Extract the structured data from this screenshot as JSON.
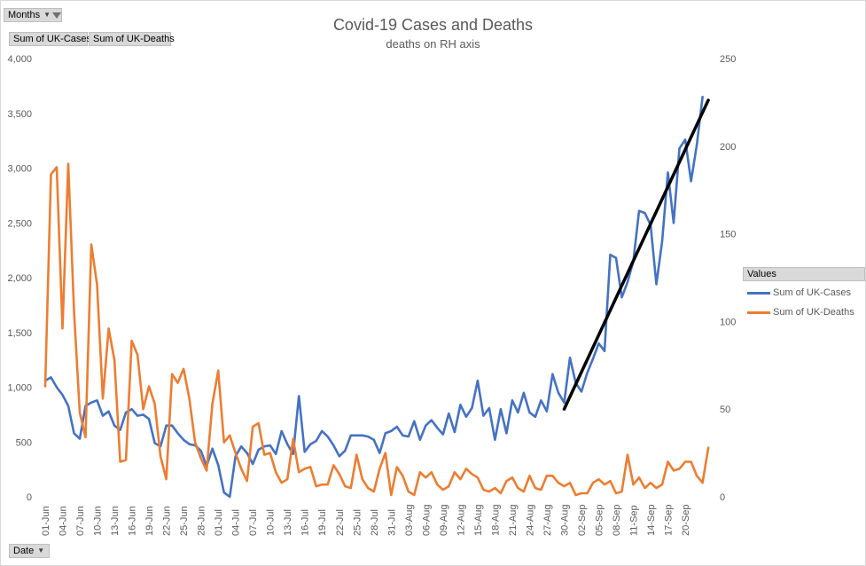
{
  "pivot": {
    "months_label": "Months",
    "cases_field": "Sum of UK-Cases",
    "deaths_field": "Sum of UK-Deaths",
    "date_label": "Date",
    "legend_header": "Values"
  },
  "chart_data": {
    "type": "line",
    "title": "Covid-19 Cases and Deaths",
    "subtitle": "deaths on RH axis",
    "ylim_left": [
      0,
      4000
    ],
    "yticks_left": [
      "0",
      "500",
      "1,000",
      "1,500",
      "2,000",
      "2,500",
      "3,000",
      "3,500",
      "4,000"
    ],
    "ylim_right": [
      0,
      250
    ],
    "yticks_right": [
      "0",
      "50",
      "100",
      "150",
      "200",
      "250"
    ],
    "legend_position": "right",
    "grid": false,
    "x_tick_labels": [
      "01-Jun",
      "04-Jun",
      "07-Jun",
      "10-Jun",
      "13-Jun",
      "16-Jun",
      "19-Jun",
      "22-Jun",
      "25-Jun",
      "28-Jun",
      "01-Jul",
      "04-Jul",
      "07-Jul",
      "10-Jul",
      "13-Jul",
      "16-Jul",
      "19-Jul",
      "22-Jul",
      "25-Jul",
      "28-Jul",
      "31-Jul",
      "03-Aug",
      "06-Aug",
      "09-Aug",
      "12-Aug",
      "15-Aug",
      "18-Aug",
      "21-Aug",
      "24-Aug",
      "27-Aug",
      "30-Aug",
      "02-Sep",
      "05-Sep",
      "08-Sep",
      "11-Sep",
      "14-Sep",
      "17-Sep",
      "20-Sep"
    ],
    "series": [
      {
        "name": "Sum of UK-Cases",
        "axis": "left",
        "color": "#4472c4",
        "values": [
          1060,
          1090,
          1000,
          930,
          830,
          580,
          530,
          830,
          860,
          880,
          740,
          780,
          650,
          610,
          770,
          800,
          740,
          750,
          710,
          490,
          460,
          650,
          650,
          580,
          520,
          480,
          470,
          420,
          280,
          440,
          290,
          40,
          0,
          370,
          460,
          400,
          300,
          430,
          460,
          470,
          390,
          600,
          480,
          390,
          920,
          410,
          480,
          510,
          600,
          550,
          470,
          370,
          420,
          560,
          560,
          560,
          550,
          520,
          400,
          580,
          600,
          640,
          560,
          550,
          690,
          520,
          650,
          700,
          630,
          570,
          760,
          590,
          840,
          730,
          810,
          1060,
          740,
          810,
          520,
          800,
          580,
          880,
          770,
          950,
          770,
          730,
          880,
          780,
          1120,
          950,
          860,
          1270,
          1040,
          960,
          1130,
          1260,
          1400,
          1330,
          2210,
          2180,
          1820,
          1960,
          2150,
          2610,
          2590,
          2480,
          1940,
          2330,
          2960,
          2500,
          3180,
          3260,
          2880,
          3210,
          3650
        ],
        "last_date": "22-Sep"
      },
      {
        "name": "Sum of UK-Deaths",
        "axis": "right",
        "color": "#ed7d31",
        "values": [
          63,
          184,
          188,
          96,
          190,
          106,
          48,
          34,
          144,
          121,
          56,
          96,
          78,
          20,
          21,
          89,
          81,
          50,
          63,
          53,
          23,
          10,
          70,
          65,
          73,
          56,
          31,
          22,
          15,
          53,
          72,
          31,
          35,
          25,
          16,
          9,
          40,
          42,
          24,
          25,
          14,
          8,
          10,
          33,
          14,
          16,
          17,
          6,
          7,
          7,
          18,
          13,
          6,
          5,
          24,
          10,
          5,
          3,
          16,
          25,
          1,
          17,
          12,
          3,
          1,
          14,
          11,
          14,
          7,
          4,
          6,
          14,
          10,
          16,
          13,
          11,
          4,
          3,
          5,
          2,
          9,
          11,
          5,
          3,
          12,
          5,
          4,
          12,
          12,
          8,
          6,
          8,
          1,
          2,
          2,
          8,
          10,
          7,
          9,
          2,
          3,
          24,
          7,
          11,
          5,
          8,
          5,
          7,
          20,
          15,
          16,
          20,
          20,
          12,
          8,
          28
        ]
      }
    ],
    "trendline": {
      "color": "#000000",
      "from": {
        "x_index": 90,
        "y": 800
      },
      "to": {
        "x_index": 115,
        "y": 3620
      }
    }
  }
}
